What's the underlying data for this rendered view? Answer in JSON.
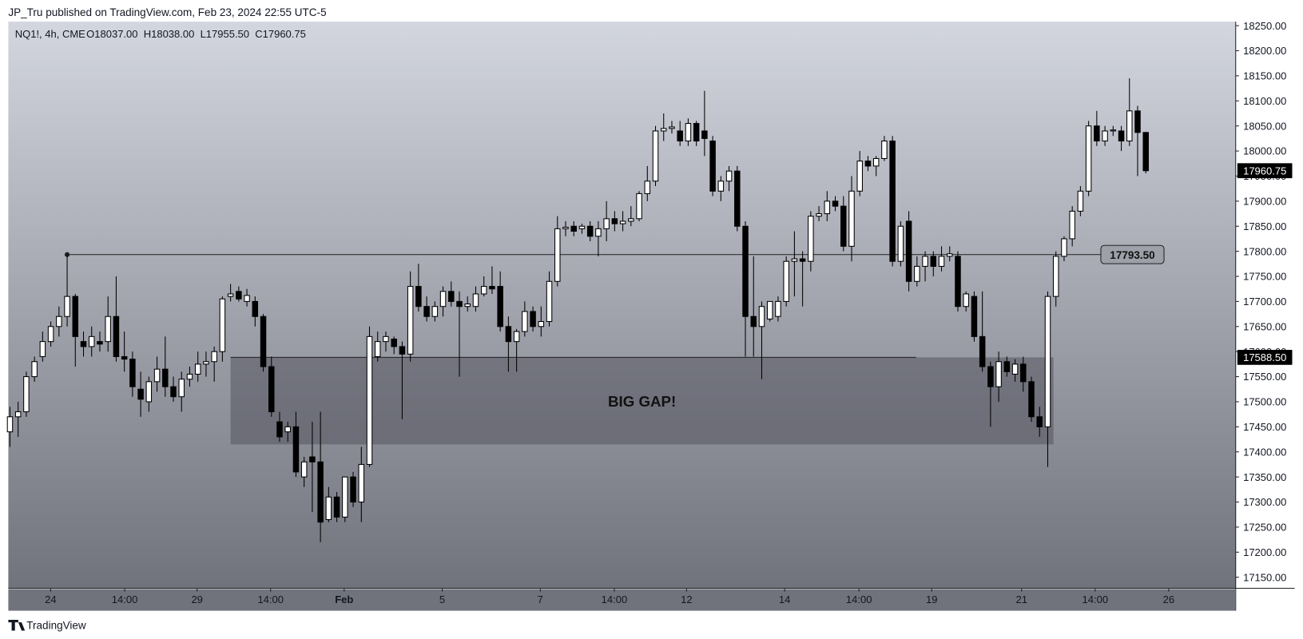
{
  "chart_data": {
    "type": "candlestick",
    "header": "JP_Tru published on TradingView.com, Feb 23, 2024 22:55 UTC-5",
    "symbol": "NQ1!, 4h, CME",
    "ohlc_text": "O18037.00  H18038.00  L17955.50  C17960.75",
    "footer": "TradingView",
    "up_color": "#ffffff",
    "down_color": "#000000",
    "ohlc": [
      [
        17440,
        17490,
        17410,
        17470
      ],
      [
        17470,
        17500,
        17430,
        17480
      ],
      [
        17480,
        17560,
        17470,
        17550
      ],
      [
        17550,
        17590,
        17540,
        17580
      ],
      [
        17590,
        17640,
        17580,
        17620
      ],
      [
        17620,
        17660,
        17610,
        17650
      ],
      [
        17650,
        17690,
        17630,
        17670
      ],
      [
        17670,
        17793.5,
        17650,
        17710
      ],
      [
        17710,
        17715,
        17570,
        17630
      ],
      [
        17620,
        17640,
        17590,
        17610
      ],
      [
        17610,
        17650,
        17590,
        17630
      ],
      [
        17620,
        17640,
        17600,
        17615
      ],
      [
        17620,
        17710,
        17600,
        17670
      ],
      [
        17670,
        17750,
        17580,
        17590
      ],
      [
        17590,
        17640,
        17560,
        17585
      ],
      [
        17585,
        17600,
        17510,
        17530
      ],
      [
        17525,
        17560,
        17470,
        17505
      ],
      [
        17500,
        17550,
        17480,
        17540
      ],
      [
        17540,
        17590,
        17520,
        17565
      ],
      [
        17565,
        17630,
        17510,
        17530
      ],
      [
        17530,
        17550,
        17500,
        17510
      ],
      [
        17510,
        17560,
        17480,
        17545
      ],
      [
        17545,
        17570,
        17530,
        17555
      ],
      [
        17555,
        17600,
        17540,
        17575
      ],
      [
        17575,
        17600,
        17550,
        17580
      ],
      [
        17580,
        17610,
        17540,
        17600
      ],
      [
        17600,
        17710,
        17580,
        17705
      ],
      [
        17710,
        17735,
        17700,
        17715
      ],
      [
        17720,
        17730,
        17700,
        17705
      ],
      [
        17700,
        17725,
        17690,
        17712
      ],
      [
        17700,
        17710,
        17650,
        17670
      ],
      [
        17670,
        17675,
        17560,
        17570
      ],
      [
        17570,
        17590,
        17470,
        17480
      ],
      [
        17460,
        17480,
        17420,
        17430
      ],
      [
        17440,
        17460,
        17420,
        17450
      ],
      [
        17450,
        17480,
        17350,
        17360
      ],
      [
        17350,
        17390,
        17330,
        17380
      ],
      [
        17390,
        17460,
        17280,
        17380
      ],
      [
        17380,
        17480,
        17220,
        17260
      ],
      [
        17265,
        17330,
        17260,
        17310
      ],
      [
        17310,
        17320,
        17260,
        17270
      ],
      [
        17270,
        17350,
        17260,
        17350
      ],
      [
        17350,
        17360,
        17290,
        17300
      ],
      [
        17300,
        17410,
        17260,
        17375
      ],
      [
        17375,
        17650,
        17370,
        17630
      ],
      [
        17590,
        17640,
        17580,
        17620
      ],
      [
        17620,
        17640,
        17600,
        17630
      ],
      [
        17625,
        17630,
        17595,
        17610
      ],
      [
        17610,
        17620,
        17465,
        17595
      ],
      [
        17595,
        17760,
        17580,
        17730
      ],
      [
        17730,
        17775,
        17680,
        17690
      ],
      [
        17690,
        17710,
        17660,
        17670
      ],
      [
        17670,
        17700,
        17660,
        17690
      ],
      [
        17690,
        17730,
        17670,
        17720
      ],
      [
        17720,
        17740,
        17690,
        17700
      ],
      [
        17700,
        17720,
        17550,
        17690
      ],
      [
        17690,
        17710,
        17680,
        17695
      ],
      [
        17690,
        17730,
        17680,
        17715
      ],
      [
        17715,
        17750,
        17710,
        17730
      ],
      [
        17730,
        17770,
        17715,
        17725
      ],
      [
        17730,
        17760,
        17640,
        17650
      ],
      [
        17650,
        17670,
        17560,
        17620
      ],
      [
        17620,
        17645,
        17560,
        17640
      ],
      [
        17640,
        17700,
        17630,
        17680
      ],
      [
        17680,
        17690,
        17640,
        17650
      ],
      [
        17650,
        17690,
        17630,
        17660
      ],
      [
        17660,
        17760,
        17650,
        17740
      ],
      [
        17740,
        17870,
        17730,
        17845
      ],
      [
        17845,
        17860,
        17830,
        17848
      ],
      [
        17850,
        17860,
        17830,
        17840
      ],
      [
        17845,
        17855,
        17835,
        17850
      ],
      [
        17850,
        17860,
        17820,
        17830
      ],
      [
        17830,
        17860,
        17790,
        17845
      ],
      [
        17845,
        17900,
        17820,
        17865
      ],
      [
        17865,
        17880,
        17840,
        17855
      ],
      [
        17855,
        17880,
        17840,
        17860
      ],
      [
        17860,
        17890,
        17850,
        17865
      ],
      [
        17865,
        17920,
        17860,
        17915
      ],
      [
        17915,
        17970,
        17900,
        17940
      ],
      [
        17940,
        18050,
        17930,
        18040
      ],
      [
        18040,
        18075,
        18020,
        18045
      ],
      [
        18045,
        18060,
        18035,
        18048
      ],
      [
        18040,
        18060,
        18010,
        18020
      ],
      [
        18020,
        18065,
        18010,
        18055
      ],
      [
        18055,
        18060,
        18010,
        18020
      ],
      [
        18040,
        18120,
        17990,
        18025
      ],
      [
        18020,
        18030,
        17910,
        17920
      ],
      [
        17920,
        17950,
        17900,
        17940
      ],
      [
        17940,
        17970,
        17920,
        17960
      ],
      [
        17960,
        17970,
        17840,
        17850
      ],
      [
        17850,
        17860,
        17590,
        17670
      ],
      [
        17670,
        17790,
        17590,
        17650
      ],
      [
        17650,
        17700,
        17545,
        17690
      ],
      [
        17665,
        17700,
        17660,
        17700
      ],
      [
        17670,
        17710,
        17660,
        17700
      ],
      [
        17700,
        17790,
        17690,
        17780
      ],
      [
        17780,
        17840,
        17710,
        17785
      ],
      [
        17785,
        17800,
        17690,
        17780
      ],
      [
        17780,
        17880,
        17760,
        17870
      ],
      [
        17870,
        17890,
        17860,
        17875
      ],
      [
        17875,
        17920,
        17860,
        17900
      ],
      [
        17900,
        17910,
        17880,
        17890
      ],
      [
        17890,
        17910,
        17800,
        17810
      ],
      [
        17810,
        17950,
        17780,
        17920
      ],
      [
        17920,
        18000,
        17910,
        17980
      ],
      [
        17980,
        17990,
        17960,
        17970
      ],
      [
        17970,
        17990,
        17950,
        17985
      ],
      [
        17985,
        18030,
        17980,
        18020
      ],
      [
        18020,
        18030,
        17770,
        17780
      ],
      [
        17780,
        17860,
        17770,
        17850
      ],
      [
        17860,
        17880,
        17720,
        17740
      ],
      [
        17740,
        17790,
        17730,
        17770
      ],
      [
        17770,
        17800,
        17740,
        17790
      ],
      [
        17790,
        17800,
        17750,
        17770
      ],
      [
        17770,
        17810,
        17760,
        17790
      ],
      [
        17790,
        17810,
        17780,
        17795
      ],
      [
        17790,
        17800,
        17680,
        17690
      ],
      [
        17690,
        17720,
        17680,
        17715
      ],
      [
        17710,
        17720,
        17620,
        17630
      ],
      [
        17630,
        17720,
        17560,
        17570
      ],
      [
        17570,
        17580,
        17450,
        17530
      ],
      [
        17530,
        17600,
        17500,
        17580
      ],
      [
        17580,
        17590,
        17550,
        17560
      ],
      [
        17555,
        17585,
        17540,
        17575
      ],
      [
        17575,
        17590,
        17520,
        17540
      ],
      [
        17540,
        17550,
        17460,
        17470
      ],
      [
        17470,
        17490,
        17430,
        17450
      ],
      [
        17450,
        17720,
        17370,
        17710
      ],
      [
        17710,
        17800,
        17690,
        17790
      ],
      [
        17790,
        17830,
        17780,
        17825
      ],
      [
        17825,
        17890,
        17810,
        17880
      ],
      [
        17880,
        17930,
        17870,
        17920
      ],
      [
        17920,
        18060,
        17910,
        18050
      ],
      [
        18050,
        18080,
        18010,
        18020
      ],
      [
        18020,
        18050,
        18010,
        18040
      ],
      [
        18040,
        18050,
        18030,
        18042
      ],
      [
        18040,
        18050,
        18000,
        18020
      ],
      [
        18020,
        18145,
        18010,
        18080
      ],
      [
        18080,
        18090,
        17950,
        18037
      ],
      [
        18037,
        18038,
        17955.5,
        17960.75
      ]
    ],
    "xlim": [
      -0.2,
      150
    ],
    "xticks": [
      {
        "value": 4.98,
        "label": "24"
      },
      {
        "value": 14.04,
        "label": "14:00"
      },
      {
        "value": 22.9,
        "label": "29"
      },
      {
        "value": 31.9,
        "label": "14:00"
      },
      {
        "value": 40.9,
        "label": "Feb"
      },
      {
        "value": 52.9,
        "label": "5"
      },
      {
        "value": 64.9,
        "label": "7"
      },
      {
        "value": 73.96,
        "label": "14:00"
      },
      {
        "value": 82.8,
        "label": "12"
      },
      {
        "value": 94.8,
        "label": "14"
      },
      {
        "value": 103.9,
        "label": "14:00"
      },
      {
        "value": 112.8,
        "label": "19"
      },
      {
        "value": 123.8,
        "label": "21"
      },
      {
        "value": 132.8,
        "label": "14:00"
      },
      {
        "value": 141.8,
        "label": "26"
      }
    ],
    "ylim": [
      17128,
      18258
    ],
    "yticks": [
      {
        "value": 17150,
        "label": "17150.00"
      },
      {
        "value": 17200,
        "label": "17200.00"
      },
      {
        "value": 17250,
        "label": "17250.00"
      },
      {
        "value": 17300,
        "label": "17300.00"
      },
      {
        "value": 17350,
        "label": "17350.00"
      },
      {
        "value": 17400,
        "label": "17400.00"
      },
      {
        "value": 17450,
        "label": "17450.00"
      },
      {
        "value": 17500,
        "label": "17500.00"
      },
      {
        "value": 17550,
        "label": "17550.00"
      },
      {
        "value": 17600,
        "label": "17600.00"
      },
      {
        "value": 17650,
        "label": "17650.00"
      },
      {
        "value": 17700,
        "label": "17700.00"
      },
      {
        "value": 17750,
        "label": "17750.00"
      },
      {
        "value": 17800,
        "label": "17800.00"
      },
      {
        "value": 17850,
        "label": "17850.00"
      },
      {
        "value": 17900,
        "label": "17900.00"
      },
      {
        "value": 17950,
        "label": "17950.00"
      },
      {
        "value": 18000,
        "label": "18000.00"
      },
      {
        "value": 18050,
        "label": "18050.00"
      },
      {
        "value": 18100,
        "label": "18100.00"
      },
      {
        "value": 18150,
        "label": "18150.00"
      },
      {
        "value": 18200,
        "label": "18200.00"
      },
      {
        "value": 18250,
        "label": "18250.00"
      }
    ],
    "hline": {
      "value": 17793.5,
      "label": "17793.50",
      "x_start": 7,
      "x_end": 133.5
    },
    "gap": {
      "label": "BIG GAP!",
      "x_start": 27,
      "x_end": 127.7,
      "top": 17588.5,
      "bottom": 17415
    },
    "gap_line": {
      "value": 17588.5,
      "label": "17588.50",
      "x_end": 110.9
    },
    "last_price": {
      "value": 17960.75,
      "label": "17960.75"
    }
  }
}
